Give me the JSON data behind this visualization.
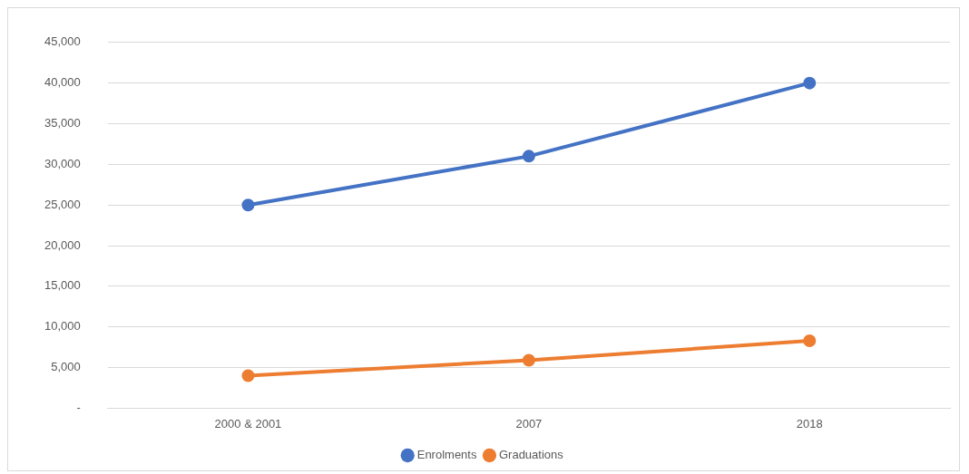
{
  "chart_data": {
    "type": "line",
    "categories": [
      "2000 & 2001",
      "2007",
      "2018"
    ],
    "series": [
      {
        "name": "Enrolments",
        "color": "#4472c4",
        "values": [
          25000,
          31000,
          40000
        ]
      },
      {
        "name": "Graduations",
        "color": "#ed7d31",
        "values": [
          4000,
          5900,
          8300
        ]
      }
    ],
    "ylim": [
      0,
      45000
    ],
    "yticks": [
      {
        "value": 0,
        "label": "-"
      },
      {
        "value": 5000,
        "label": "5,000"
      },
      {
        "value": 10000,
        "label": "10,000"
      },
      {
        "value": 15000,
        "label": "15,000"
      },
      {
        "value": 20000,
        "label": "20,000"
      },
      {
        "value": 25000,
        "label": "25,000"
      },
      {
        "value": 30000,
        "label": "30,000"
      },
      {
        "value": 35000,
        "label": "35,000"
      },
      {
        "value": 40000,
        "label": "40,000"
      },
      {
        "value": 45000,
        "label": "45,000"
      }
    ],
    "grid": "y",
    "legend": "bottom",
    "marker": "circle",
    "line_style": "solid"
  }
}
